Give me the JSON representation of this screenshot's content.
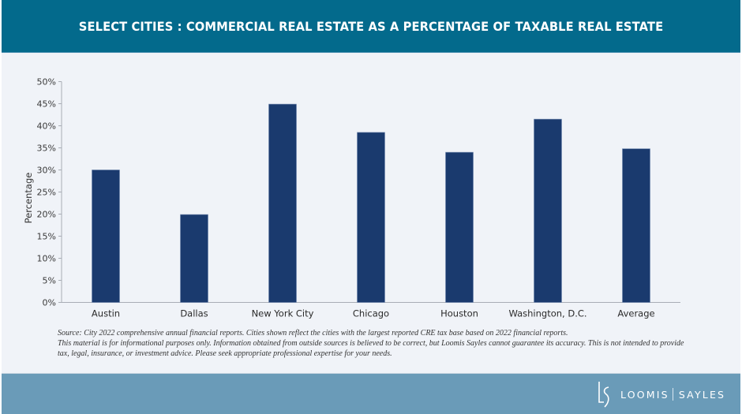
{
  "header": {
    "title": "SELECT CITIES : COMMERCIAL REAL ESTATE AS A PERCENTAGE OF TAXABLE REAL ESTATE"
  },
  "colors": {
    "header_bg": "#036a8c",
    "bar": "#1a3a6e",
    "background": "#f0f3f8",
    "footer_bg": "#6a9bb8"
  },
  "chart_data": {
    "type": "bar",
    "title": "SELECT CITIES : COMMERCIAL REAL ESTATE AS A PERCENTAGE OF TAXABLE REAL ESTATE",
    "xlabel": "",
    "ylabel": "Percentage",
    "categories": [
      "Austin",
      "Dallas",
      "New York City",
      "Chicago",
      "Houston",
      "Washington, D.C.",
      "Average"
    ],
    "values": [
      30.0,
      19.9,
      44.9,
      38.5,
      34.0,
      41.5,
      34.8
    ],
    "unit": "%",
    "ylim": [
      0,
      50
    ],
    "yticks": [
      0,
      5,
      10,
      15,
      20,
      25,
      30,
      35,
      40,
      45,
      50
    ],
    "ytick_labels": [
      "0%",
      "5%",
      "10%",
      "15%",
      "20%",
      "25%",
      "30%",
      "35%",
      "40%",
      "45%",
      "50%"
    ],
    "grid": false,
    "legend": "none"
  },
  "notes": {
    "source": "Source: City 2022 comprehensive annual financial reports. Cities shown reflect the cities with the largest reported CRE tax base based on 2022 financial reports.",
    "disclaimer_line1": "This material is for informational purposes only. Information obtained from outside sources is believed to be correct, but Loomis Sayles cannot guarantee its accuracy. This is not intended to provide",
    "disclaimer_line2": "tax, legal, insurance, or investment advice.  Please seek appropriate professional expertise for your needs."
  },
  "footer": {
    "logo_left": "LOOMIS",
    "logo_right": "SAYLES"
  }
}
